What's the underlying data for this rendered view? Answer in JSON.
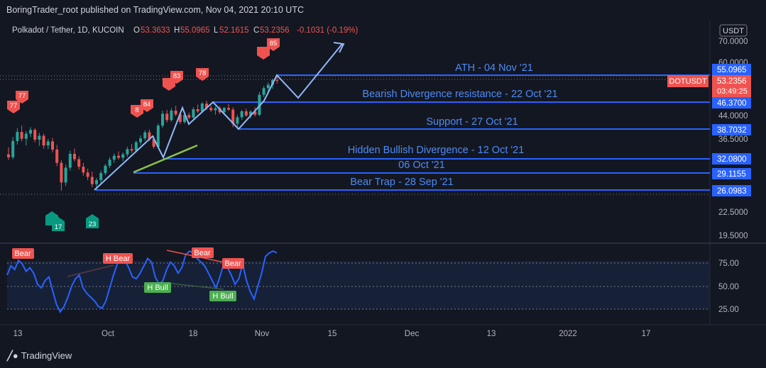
{
  "header": {
    "published": "BoringTrader_root published on TradingView.com, Nov 04, 2021 20:10 UTC"
  },
  "legend": {
    "symbol": "Polkadot / Tether, 1D, KUCOIN",
    "o_label": "O",
    "o": "53.3633",
    "h_label": "H",
    "h": "55.0965",
    "l_label": "L",
    "l": "52.1615",
    "c_label": "C",
    "c": "53.2356",
    "change": "-0.1031 (-0.19%)"
  },
  "price_axis": {
    "currency": "USDT",
    "ticks": [
      "70.0000",
      "60.0000",
      "44.0000",
      "36.5000",
      "22.5000",
      "19.5000"
    ],
    "badges": {
      "ath": "55.0965",
      "symbol": "DOTUSDT",
      "last": "53.2356",
      "countdown": "03:49:25",
      "bearish_div": "46.3700",
      "support": "38.7032",
      "hidden_bull": "32.0800",
      "oct06": "29.1155",
      "bear_trap": "26.0983"
    }
  },
  "level_labels": {
    "ath": "ATH - 04 Nov '21",
    "bearish_div": "Bearish Divergence resistance - 22 Oct '21",
    "support": "Support - 27 Oct '21",
    "hidden_bull": "Hidden Bullish Divergence - 12 Oct '21",
    "oct06": "06 Oct '21",
    "bear_trap": "Bear Trap - 28 Sep '21"
  },
  "markers": {
    "red": [
      "77",
      "77",
      "8",
      "84",
      "83",
      "78",
      "85"
    ],
    "green": [
      "17",
      "23"
    ]
  },
  "oscillator": {
    "ticks": [
      "75.00",
      "50.00",
      "25.00"
    ],
    "labels": [
      "Bear",
      "H Bear",
      "Bear",
      "Bear",
      "H Bull",
      "H Bull"
    ]
  },
  "time_axis": [
    "13",
    "Oct",
    "18",
    "Nov",
    "15",
    "Dec",
    "13",
    "2022",
    "17"
  ],
  "footer": {
    "brand": "TradingView"
  },
  "colors": {
    "up": "#26a69a",
    "down": "#ef5350",
    "level": "#2962ff",
    "osc": "#2962ff",
    "bg": "#131722"
  },
  "chart_data": {
    "type": "candlestick",
    "symbol": "DOTUSDT",
    "timeframe": "1D",
    "exchange": "KUCOIN",
    "levels": [
      {
        "name": "ATH - 04 Nov '21",
        "value": 55.0965
      },
      {
        "name": "Bearish Divergence resistance - 22 Oct '21",
        "value": 46.37
      },
      {
        "name": "Support - 27 Oct '21",
        "value": 38.7032
      },
      {
        "name": "Hidden Bullish Divergence - 12 Oct '21",
        "value": 32.08
      },
      {
        "name": "06 Oct '21",
        "value": 29.1155
      },
      {
        "name": "Bear Trap - 28 Sep '21",
        "value": 26.0983
      }
    ],
    "last_close": 53.2356,
    "candles": [
      {
        "o": 33.0,
        "h": 34.5,
        "l": 31.8,
        "c": 32.4
      },
      {
        "o": 32.4,
        "h": 36.8,
        "l": 32.0,
        "c": 35.9
      },
      {
        "o": 35.9,
        "h": 38.9,
        "l": 35.1,
        "c": 38.0
      },
      {
        "o": 38.0,
        "h": 39.6,
        "l": 35.8,
        "c": 36.4
      },
      {
        "o": 36.4,
        "h": 38.2,
        "l": 34.9,
        "c": 37.6
      },
      {
        "o": 37.6,
        "h": 39.2,
        "l": 36.8,
        "c": 38.5
      },
      {
        "o": 38.5,
        "h": 39.0,
        "l": 35.6,
        "c": 36.2
      },
      {
        "o": 36.2,
        "h": 37.8,
        "l": 34.8,
        "c": 37.1
      },
      {
        "o": 37.1,
        "h": 37.6,
        "l": 34.2,
        "c": 34.9
      },
      {
        "o": 34.9,
        "h": 36.4,
        "l": 34.1,
        "c": 35.8
      },
      {
        "o": 35.8,
        "h": 36.6,
        "l": 33.4,
        "c": 34.0
      },
      {
        "o": 34.0,
        "h": 35.0,
        "l": 30.5,
        "c": 31.2
      },
      {
        "o": 31.2,
        "h": 31.8,
        "l": 26.0,
        "c": 27.4
      },
      {
        "o": 27.4,
        "h": 30.9,
        "l": 26.8,
        "c": 30.2
      },
      {
        "o": 30.2,
        "h": 33.8,
        "l": 29.6,
        "c": 33.1
      },
      {
        "o": 33.1,
        "h": 34.2,
        "l": 31.5,
        "c": 32.0
      },
      {
        "o": 32.0,
        "h": 32.6,
        "l": 29.8,
        "c": 30.4
      },
      {
        "o": 30.4,
        "h": 31.2,
        "l": 28.6,
        "c": 29.2
      },
      {
        "o": 29.2,
        "h": 30.0,
        "l": 27.8,
        "c": 28.4
      },
      {
        "o": 28.4,
        "h": 29.4,
        "l": 26.6,
        "c": 27.1
      },
      {
        "o": 27.1,
        "h": 28.2,
        "l": 26.1,
        "c": 27.8
      },
      {
        "o": 27.8,
        "h": 29.6,
        "l": 27.2,
        "c": 29.1
      },
      {
        "o": 29.1,
        "h": 31.0,
        "l": 28.7,
        "c": 30.6
      },
      {
        "o": 30.6,
        "h": 32.4,
        "l": 30.1,
        "c": 31.9
      },
      {
        "o": 31.9,
        "h": 33.2,
        "l": 31.2,
        "c": 32.7
      },
      {
        "o": 32.7,
        "h": 33.6,
        "l": 31.9,
        "c": 32.3
      },
      {
        "o": 32.3,
        "h": 33.4,
        "l": 31.6,
        "c": 33.0
      },
      {
        "o": 33.0,
        "h": 34.6,
        "l": 32.5,
        "c": 34.1
      },
      {
        "o": 34.1,
        "h": 35.2,
        "l": 33.3,
        "c": 33.8
      },
      {
        "o": 33.8,
        "h": 36.0,
        "l": 33.4,
        "c": 35.6
      },
      {
        "o": 35.6,
        "h": 37.2,
        "l": 35.0,
        "c": 36.5
      },
      {
        "o": 36.5,
        "h": 38.4,
        "l": 36.0,
        "c": 37.9
      },
      {
        "o": 37.9,
        "h": 38.6,
        "l": 35.9,
        "c": 36.3
      },
      {
        "o": 36.3,
        "h": 37.0,
        "l": 34.2,
        "c": 34.6
      },
      {
        "o": 34.6,
        "h": 40.2,
        "l": 34.2,
        "c": 39.6
      },
      {
        "o": 39.6,
        "h": 43.8,
        "l": 39.0,
        "c": 42.9
      },
      {
        "o": 42.9,
        "h": 44.0,
        "l": 40.4,
        "c": 41.1
      },
      {
        "o": 41.1,
        "h": 44.6,
        "l": 40.6,
        "c": 43.8
      },
      {
        "o": 43.8,
        "h": 45.2,
        "l": 42.2,
        "c": 42.7
      },
      {
        "o": 42.7,
        "h": 43.4,
        "l": 40.0,
        "c": 40.6
      },
      {
        "o": 40.6,
        "h": 43.0,
        "l": 40.1,
        "c": 42.5
      },
      {
        "o": 42.5,
        "h": 43.2,
        "l": 41.4,
        "c": 41.8
      },
      {
        "o": 41.8,
        "h": 44.8,
        "l": 41.5,
        "c": 44.2
      },
      {
        "o": 44.2,
        "h": 45.6,
        "l": 43.1,
        "c": 43.6
      },
      {
        "o": 43.6,
        "h": 46.4,
        "l": 43.2,
        "c": 45.9
      },
      {
        "o": 45.9,
        "h": 46.8,
        "l": 44.0,
        "c": 44.6
      },
      {
        "o": 44.6,
        "h": 45.4,
        "l": 43.4,
        "c": 43.9
      },
      {
        "o": 43.9,
        "h": 45.0,
        "l": 42.6,
        "c": 44.5
      },
      {
        "o": 44.5,
        "h": 45.2,
        "l": 42.8,
        "c": 43.3
      },
      {
        "o": 43.3,
        "h": 44.9,
        "l": 42.9,
        "c": 44.6
      },
      {
        "o": 44.6,
        "h": 45.8,
        "l": 43.7,
        "c": 44.1
      },
      {
        "o": 44.1,
        "h": 44.8,
        "l": 39.2,
        "c": 40.1
      },
      {
        "o": 40.1,
        "h": 42.6,
        "l": 38.7,
        "c": 41.9
      },
      {
        "o": 41.9,
        "h": 44.0,
        "l": 41.2,
        "c": 43.6
      },
      {
        "o": 43.6,
        "h": 44.4,
        "l": 42.0,
        "c": 42.4
      },
      {
        "o": 42.4,
        "h": 43.9,
        "l": 41.6,
        "c": 43.5
      },
      {
        "o": 43.5,
        "h": 44.8,
        "l": 42.1,
        "c": 42.6
      },
      {
        "o": 42.6,
        "h": 49.5,
        "l": 42.2,
        "c": 48.6
      },
      {
        "o": 48.6,
        "h": 51.4,
        "l": 47.9,
        "c": 50.7
      },
      {
        "o": 50.7,
        "h": 52.6,
        "l": 49.2,
        "c": 51.8
      },
      {
        "o": 51.8,
        "h": 53.9,
        "l": 50.5,
        "c": 53.4
      },
      {
        "o": 53.4,
        "h": 55.1,
        "l": 52.2,
        "c": 53.2
      }
    ],
    "projection": [
      [
        48.6,
        55.1
      ],
      [
        55.1,
        55.1
      ],
      [
        52.0,
        49.0
      ],
      [
        55.0,
        66.5
      ]
    ],
    "oscillator_series": [
      62,
      72,
      68,
      78,
      74,
      66,
      70,
      64,
      52,
      48,
      56,
      60,
      45,
      30,
      22,
      28,
      38,
      50,
      58,
      62,
      48,
      42,
      38,
      34,
      28,
      26,
      34,
      48,
      62,
      74,
      82,
      78,
      70,
      60,
      58,
      64,
      72,
      80,
      76,
      60,
      52,
      56,
      68,
      76,
      72,
      64,
      70,
      84,
      88,
      86,
      80,
      76,
      72,
      64,
      56,
      48,
      60,
      74,
      70,
      62,
      52,
      58,
      74,
      56,
      44,
      36,
      50,
      64,
      82,
      86,
      88,
      86
    ],
    "oscillator_levels": [
      75,
      50,
      25
    ]
  }
}
